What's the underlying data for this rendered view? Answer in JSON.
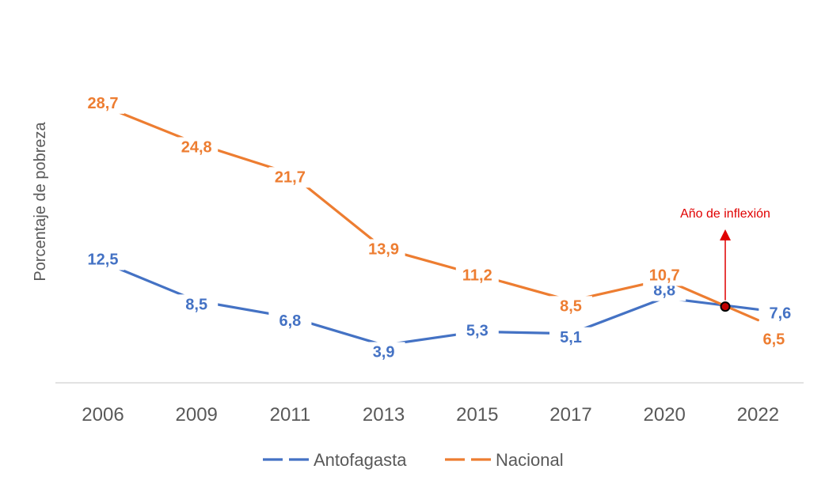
{
  "chart_data": {
    "type": "line",
    "categories": [
      "2006",
      "2009",
      "2011",
      "2013",
      "2015",
      "2017",
      "2020",
      "2022"
    ],
    "ylabel": "Porcentaje de pobreza",
    "xlabel": "",
    "ylim": [
      0,
      32
    ],
    "grid": false,
    "legend_position": "bottom",
    "series": [
      {
        "name": "Antofagasta",
        "color": "#4472C4",
        "values": [
          12.5,
          8.5,
          6.8,
          3.9,
          5.3,
          5.1,
          8.8,
          7.6
        ],
        "labels": [
          "12,5",
          "8,5",
          "6,8",
          "3,9",
          "5,3",
          "5,1",
          "8,8",
          "7,6"
        ]
      },
      {
        "name": "Nacional",
        "color": "#ED7D31",
        "values": [
          28.7,
          24.8,
          21.7,
          13.9,
          11.2,
          8.5,
          10.7,
          6.5
        ],
        "labels": [
          "28,7",
          "24,8",
          "21,7",
          "13,9",
          "11,2",
          "8,5",
          "10,7",
          "6,5"
        ]
      }
    ],
    "annotation": {
      "text": "Año de inflexión",
      "color": "#E00000",
      "marker": "intersection-point"
    }
  }
}
